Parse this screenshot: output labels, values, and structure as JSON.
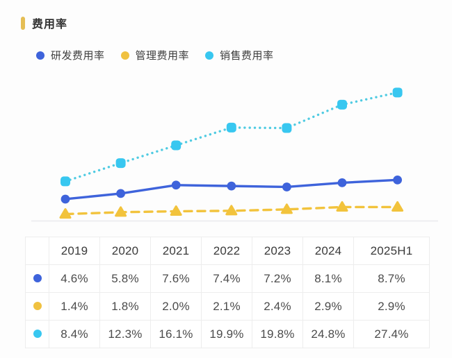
{
  "page": {
    "background": "#FDFDFD"
  },
  "header": {
    "title": "费用率",
    "accent_color": "#E5BE55"
  },
  "legend": [
    {
      "label": "研发费用率",
      "color": "#3E63DB"
    },
    {
      "label": "管理费用率",
      "color": "#F0C140"
    },
    {
      "label": "销售费用率",
      "color": "#38C7F0"
    }
  ],
  "chart_data": {
    "type": "line",
    "title": "费用率",
    "categories": [
      "2019",
      "2020",
      "2021",
      "2022",
      "2023",
      "2024",
      "2025H1"
    ],
    "series": [
      {
        "name": "研发费用率",
        "values": [
          4.6,
          5.8,
          7.6,
          7.4,
          7.2,
          8.1,
          8.7
        ],
        "color": "#3E63DB",
        "line_style": "solid",
        "marker": "circle"
      },
      {
        "name": "管理费用率",
        "values": [
          1.4,
          1.8,
          2.0,
          2.1,
          2.4,
          2.9,
          2.9
        ],
        "color": "#F2C33C",
        "line_style": "dashed",
        "marker": "triangle"
      },
      {
        "name": "销售费用率",
        "values": [
          8.4,
          12.3,
          16.1,
          19.9,
          19.8,
          24.8,
          27.4
        ],
        "color": "#4FCBE2",
        "marker_color": "#38C7F0",
        "line_style": "dotted",
        "marker": "square"
      }
    ],
    "xlabel": "",
    "ylabel": "",
    "ylim": [
      0,
      31
    ],
    "grid": false,
    "axis_line_color": "#E9E9EE",
    "legend_position": "top"
  },
  "table": {
    "columns": [
      "",
      "2019",
      "2020",
      "2021",
      "2022",
      "2023",
      "2024",
      "2025H1"
    ],
    "rows": [
      {
        "series": "研发费用率",
        "dot_color": "#3E63DB",
        "values": [
          "4.6%",
          "5.8%",
          "7.6%",
          "7.4%",
          "7.2%",
          "8.1%",
          "8.7%"
        ]
      },
      {
        "series": "管理费用率",
        "dot_color": "#F0C140",
        "values": [
          "1.4%",
          "1.8%",
          "2.0%",
          "2.1%",
          "2.4%",
          "2.9%",
          "2.9%"
        ]
      },
      {
        "series": "销售费用率",
        "dot_color": "#38C7F0",
        "values": [
          "8.4%",
          "12.3%",
          "16.1%",
          "19.9%",
          "19.8%",
          "24.8%",
          "27.4%"
        ]
      }
    ]
  }
}
